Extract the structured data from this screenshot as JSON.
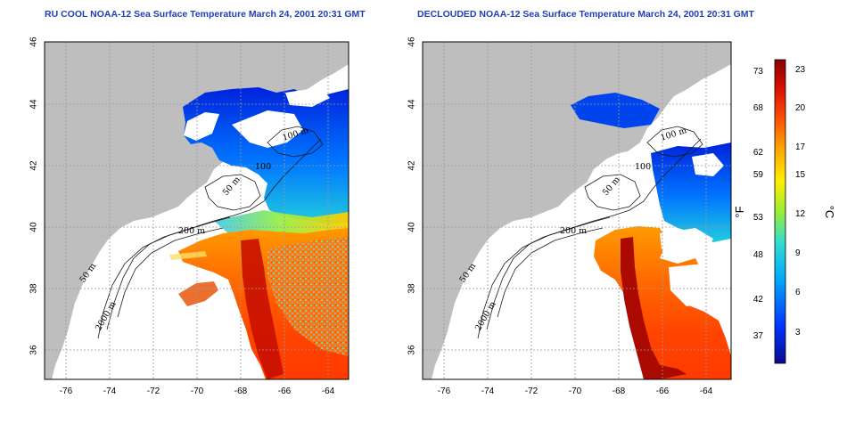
{
  "panels": [
    {
      "id": "left",
      "title": "RU COOL NOAA-12 Sea Surface Temperature March 24, 2001 20:31 GMT",
      "x_ticks": [
        "-76",
        "-74",
        "-72",
        "-70",
        "-68",
        "-66",
        "-64"
      ],
      "y_ticks": [
        "46",
        "44",
        "42",
        "40",
        "38",
        "36"
      ],
      "contour_labels": [
        "100 m",
        "100",
        "50 m",
        "200 m",
        "50 m",
        "2000 m"
      ]
    },
    {
      "id": "right",
      "title": "DECLOUDED NOAA-12 Sea Surface Temperature March 24, 2001 20:31 GMT",
      "x_ticks": [
        "-76",
        "-74",
        "-72",
        "-70",
        "-68",
        "-66",
        "-64"
      ],
      "y_ticks": [
        "46",
        "44",
        "42",
        "40",
        "38",
        "36"
      ],
      "contour_labels": [
        "100 m",
        "100",
        "50 m",
        "200 m",
        "50 m",
        "2000 m"
      ]
    }
  ],
  "colorbar": {
    "fahrenheit_label": "°F",
    "celsius_label": "°C",
    "fahrenheit_ticks": [
      "73",
      "68",
      "62",
      "59",
      "53",
      "48",
      "42",
      "37"
    ],
    "celsius_ticks": [
      "23",
      "20",
      "17",
      "15",
      "12",
      "9",
      "6",
      "3"
    ],
    "colors": [
      "#0a0a8c",
      "#0033ff",
      "#00aaff",
      "#33ddcc",
      "#99ee33",
      "#ffee00",
      "#ffaa00",
      "#ff5500",
      "#dd1100",
      "#8b0000"
    ]
  },
  "colors": {
    "land": "#bebebe",
    "grid": "#9a9a9a",
    "title": "#1f3fb8"
  }
}
